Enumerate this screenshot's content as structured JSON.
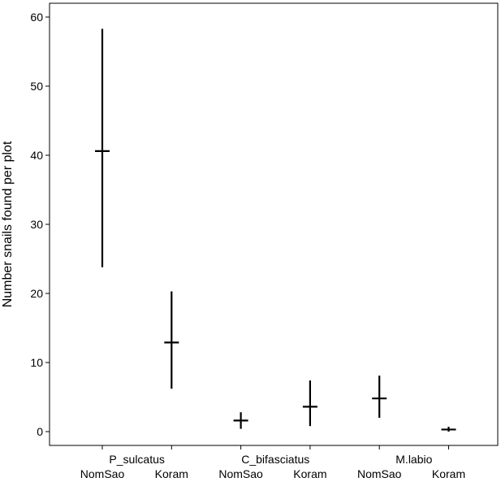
{
  "chart_data": {
    "type": "errorbar",
    "title": "",
    "ylabel": "Number snails found per plot",
    "xlabel": "",
    "ylim": [
      -2,
      62
    ],
    "yticks": [
      0,
      10,
      20,
      30,
      40,
      50,
      60
    ],
    "grid": false,
    "groups": [
      "P_sulcatus",
      "C_bifasciatus",
      "M.labio"
    ],
    "sites": [
      "NomSao",
      "Koram"
    ],
    "points": [
      {
        "group": "P_sulcatus",
        "site": "NomSao",
        "mean": 40.6,
        "lower": 23.8,
        "upper": 58.3
      },
      {
        "group": "P_sulcatus",
        "site": "Koram",
        "mean": 12.9,
        "lower": 6.2,
        "upper": 20.3
      },
      {
        "group": "C_bifasciatus",
        "site": "NomSao",
        "mean": 1.6,
        "lower": 0.4,
        "upper": 2.8
      },
      {
        "group": "C_bifasciatus",
        "site": "Koram",
        "mean": 3.6,
        "lower": 0.8,
        "upper": 7.4
      },
      {
        "group": "M.labio",
        "site": "NomSao",
        "mean": 4.8,
        "lower": 2.0,
        "upper": 8.1
      },
      {
        "group": "M.labio",
        "site": "Koram",
        "mean": 0.3,
        "lower": 0.0,
        "upper": 0.7
      }
    ],
    "colors": {
      "marks": "#000000",
      "frame": "#000000",
      "background": "#ffffff"
    }
  }
}
